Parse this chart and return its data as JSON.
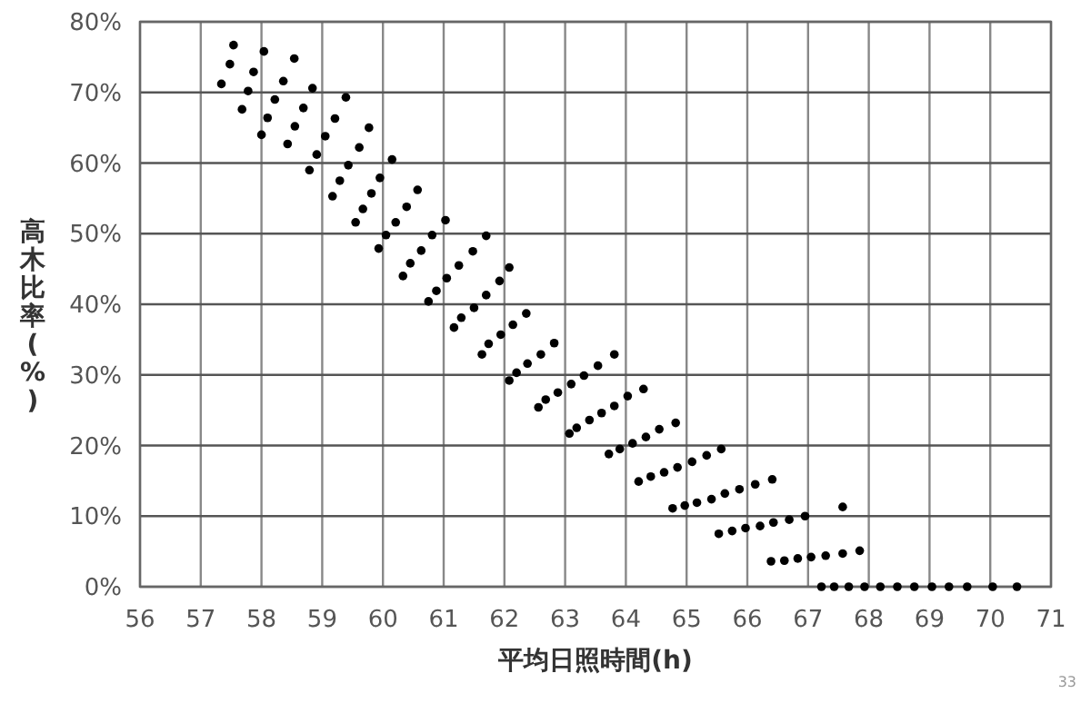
{
  "chart_data": {
    "type": "scatter",
    "xlabel": "平均日照時間(h)",
    "ylabel": "高木比率(%)",
    "annotations": [
      "33"
    ],
    "x": [
      57.54,
      57.48,
      57.34,
      57.87,
      57.78,
      57.68,
      58.04,
      58.36,
      58.22,
      58.1,
      58.0,
      58.54,
      58.84,
      58.69,
      58.55,
      58.43,
      59.39,
      59.21,
      59.05,
      58.91,
      58.79,
      59.77,
      59.61,
      59.43,
      59.29,
      59.17,
      60.15,
      59.95,
      59.81,
      59.67,
      59.55,
      60.57,
      60.39,
      60.21,
      60.05,
      59.93,
      61.03,
      60.81,
      60.63,
      60.45,
      60.33,
      61.25,
      61.05,
      60.88,
      60.75,
      61.29,
      61.17,
      61.7,
      61.48,
      62.08,
      61.92,
      61.7,
      61.5,
      62.36,
      62.14,
      61.94,
      61.74,
      61.63,
      62.82,
      62.6,
      62.38,
      62.2,
      62.08,
      63.81,
      63.54,
      63.31,
      63.1,
      62.88,
      62.68,
      62.56,
      64.29,
      64.03,
      63.81,
      63.6,
      63.4,
      63.19,
      63.07,
      64.82,
      64.55,
      64.33,
      64.11,
      63.9,
      63.72,
      65.57,
      65.33,
      65.09,
      64.85,
      64.63,
      64.41,
      64.21,
      66.41,
      66.13,
      65.87,
      65.63,
      65.41,
      65.17,
      64.97,
      64.77,
      67.57,
      66.95,
      66.69,
      66.43,
      66.21,
      65.97,
      65.75,
      65.53,
      67.85,
      67.57,
      67.29,
      67.05,
      66.83,
      66.61,
      66.39,
      67.22,
      67.43,
      67.67,
      67.93,
      68.19,
      68.47,
      68.75,
      69.04,
      69.32,
      69.62,
      70.04,
      70.44
    ],
    "values": [
      76.7,
      74.0,
      71.2,
      72.9,
      70.2,
      67.6,
      75.8,
      71.6,
      69.0,
      66.4,
      64.0,
      74.8,
      70.6,
      67.8,
      65.2,
      62.7,
      69.3,
      66.3,
      63.8,
      61.2,
      59.0,
      65.0,
      62.2,
      59.7,
      57.5,
      55.3,
      60.5,
      57.9,
      55.7,
      53.5,
      51.6,
      56.2,
      53.8,
      51.6,
      49.8,
      47.9,
      51.9,
      49.8,
      47.6,
      45.8,
      44.0,
      45.5,
      43.7,
      41.9,
      40.4,
      38.1,
      36.7,
      49.7,
      47.5,
      45.2,
      43.3,
      41.3,
      39.5,
      38.7,
      37.1,
      35.7,
      34.4,
      32.9,
      34.5,
      32.9,
      31.6,
      30.3,
      29.2,
      32.9,
      31.3,
      29.9,
      28.7,
      27.5,
      26.5,
      25.4,
      28.0,
      27.0,
      25.6,
      24.6,
      23.6,
      22.5,
      21.7,
      23.2,
      22.3,
      21.2,
      20.3,
      19.5,
      18.8,
      19.5,
      18.6,
      17.7,
      16.9,
      16.2,
      15.6,
      14.9,
      15.2,
      14.5,
      13.8,
      13.2,
      12.4,
      11.9,
      11.5,
      11.1,
      11.3,
      10.0,
      9.5,
      9.1,
      8.6,
      8.3,
      7.9,
      7.5,
      5.1,
      4.7,
      4.4,
      4.2,
      4.0,
      3.7,
      3.6,
      0,
      0,
      0,
      0,
      0,
      0,
      0,
      0,
      0,
      0,
      0,
      0
    ],
    "color": "#000000",
    "marker": "circle",
    "grid": true,
    "xlim": [
      56,
      71
    ],
    "ylim": [
      0,
      80
    ],
    "xticks": [
      56,
      57,
      58,
      59,
      60,
      61,
      62,
      63,
      64,
      65,
      66,
      67,
      68,
      69,
      70,
      71
    ],
    "yticks": [
      {
        "value": 0,
        "label": "0%"
      },
      {
        "value": 10,
        "label": "10%"
      },
      {
        "value": 20,
        "label": "20%"
      },
      {
        "value": 30,
        "label": "30%"
      },
      {
        "value": 40,
        "label": "40%"
      },
      {
        "value": 50,
        "label": "50%"
      },
      {
        "value": 60,
        "label": "60%"
      },
      {
        "value": 70,
        "label": "70%"
      },
      {
        "value": 80,
        "label": "80%"
      }
    ]
  }
}
